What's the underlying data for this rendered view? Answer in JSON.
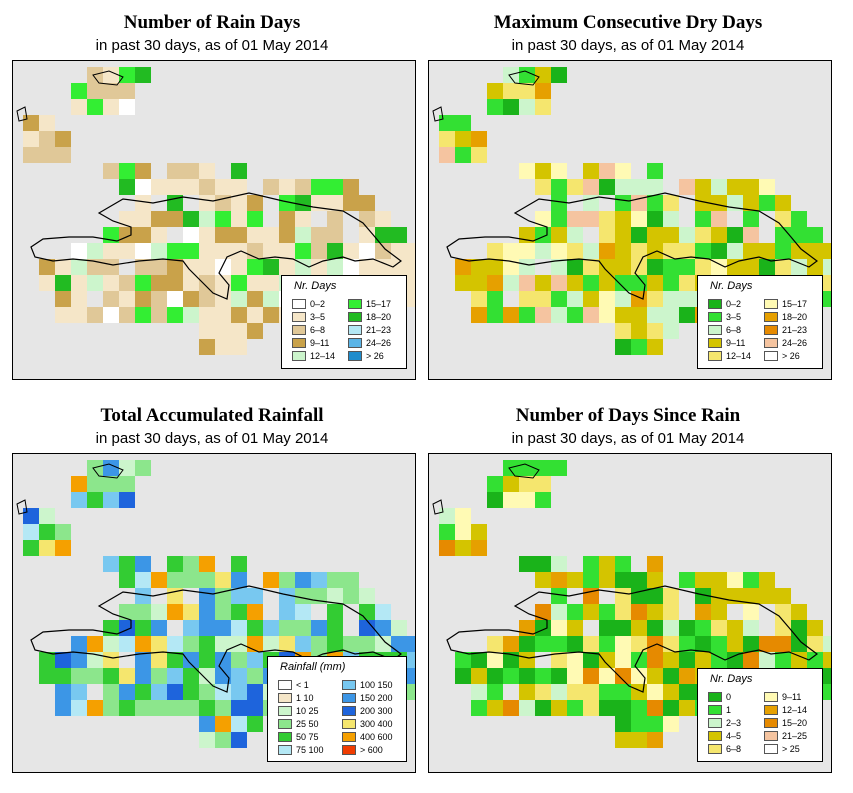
{
  "panels": [
    {
      "id": "rain-days",
      "title": "Number of Rain Days",
      "subtitle": "in past 30 days, as of  01 May 2014",
      "legend_title": "Nr. Days",
      "legend_items": [
        {
          "label": "0–2",
          "color": "#ffffff"
        },
        {
          "label": "3–5",
          "color": "#f5e6c8"
        },
        {
          "label": "6–8",
          "color": "#e0c898"
        },
        {
          "label": "9–11",
          "color": "#c9a24a"
        },
        {
          "label": "12–14",
          "color": "#ccf5cc"
        },
        {
          "label": "15–17",
          "color": "#33ee33"
        },
        {
          "label": "18–20",
          "color": "#22bb22"
        },
        {
          "label": "21–23",
          "color": "#b4e8f5"
        },
        {
          "label": "24–26",
          "color": "#5ab4e6"
        },
        {
          "label": "> 26",
          "color": "#1e8ccc"
        }
      ]
    },
    {
      "id": "dry-days",
      "title": "Maximum Consecutive Dry Days",
      "subtitle": "in past 30 days, as of  01 May 2014",
      "legend_title": "Nr. Days",
      "legend_items": [
        {
          "label": "0–2",
          "color": "#1ab31a"
        },
        {
          "label": "3–5",
          "color": "#33e033"
        },
        {
          "label": "6–8",
          "color": "#ccf5cc"
        },
        {
          "label": "9–11",
          "color": "#d4c400"
        },
        {
          "label": "12–14",
          "color": "#f5e66e"
        },
        {
          "label": "15–17",
          "color": "#fffab4"
        },
        {
          "label": "18–20",
          "color": "#e6a000"
        },
        {
          "label": "21–23",
          "color": "#e68a00"
        },
        {
          "label": "24–26",
          "color": "#f5c4a0"
        },
        {
          "label": "> 26",
          "color": "#ffffff"
        }
      ]
    },
    {
      "id": "rainfall",
      "title": "Total Accumulated Rainfall",
      "subtitle": "in past 30 days, as of  01 May 2014",
      "legend_title": "Rainfall (mm)",
      "legend_items": [
        {
          "label": "< 1",
          "color": "#ffffff"
        },
        {
          "label": "1   10",
          "color": "#f5e6c8"
        },
        {
          "label": "10   25",
          "color": "#ccf5cc"
        },
        {
          "label": "25   50",
          "color": "#8ce68c"
        },
        {
          "label": "50   75",
          "color": "#33cc33"
        },
        {
          "label": "75  100",
          "color": "#b4e8f5"
        },
        {
          "label": "100  150",
          "color": "#78c8f0"
        },
        {
          "label": "150  200",
          "color": "#3c96e6"
        },
        {
          "label": "200  300",
          "color": "#1e64dc"
        },
        {
          "label": "300  400",
          "color": "#f5e66e"
        },
        {
          "label": "400  600",
          "color": "#f5a000"
        },
        {
          "label": "> 600",
          "color": "#f03c00"
        }
      ]
    },
    {
      "id": "days-since-rain",
      "title": "Number of Days Since Rain",
      "subtitle": "in past 30 days, as of  01 May 2014",
      "legend_title": "Nr. Days",
      "legend_items": [
        {
          "label": "0",
          "color": "#1ab31a"
        },
        {
          "label": "1",
          "color": "#33e033"
        },
        {
          "label": "2–3",
          "color": "#ccf5cc"
        },
        {
          "label": "4–5",
          "color": "#d4c400"
        },
        {
          "label": "6–8",
          "color": "#f5e66e"
        },
        {
          "label": "9–11",
          "color": "#fffab4"
        },
        {
          "label": "12–14",
          "color": "#e6a000"
        },
        {
          "label": "15–20",
          "color": "#e68a00"
        },
        {
          "label": "21–25",
          "color": "#f5c4a0"
        },
        {
          "label": "> 25",
          "color": "#ffffff"
        }
      ]
    }
  ]
}
